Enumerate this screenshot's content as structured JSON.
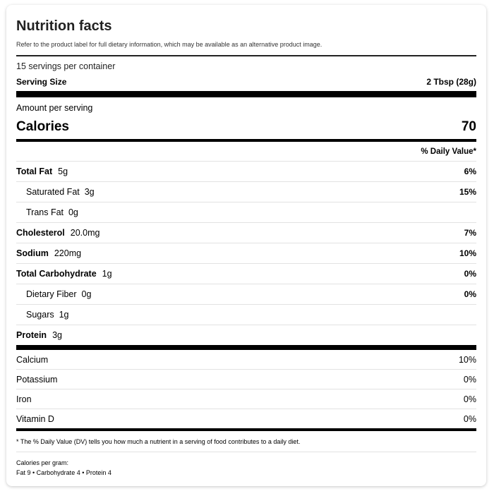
{
  "title": "Nutrition facts",
  "subtitle": "Refer to the product label for full dietary information, which may be available as an alternative product image.",
  "servings_per_container": "15 servings per container",
  "serving_size": {
    "label": "Serving Size",
    "value": "2 Tbsp (28g)"
  },
  "amount_per_serving": "Amount per serving",
  "calories": {
    "label": "Calories",
    "value": "70"
  },
  "daily_value_header": "% Daily Value*",
  "nutrients": [
    {
      "name": "Total Fat",
      "amount": "5g",
      "dv": "6%"
    },
    {
      "name": "Saturated Fat",
      "amount": "3g",
      "dv": "15%"
    },
    {
      "name": "Trans Fat",
      "amount": "0g",
      "dv": ""
    },
    {
      "name": "Cholesterol",
      "amount": "20.0mg",
      "dv": "7%"
    },
    {
      "name": "Sodium",
      "amount": "220mg",
      "dv": "10%"
    },
    {
      "name": "Total Carbohydrate",
      "amount": "1g",
      "dv": "0%"
    },
    {
      "name": "Dietary Fiber",
      "amount": "0g",
      "dv": "0%"
    },
    {
      "name": "Sugars",
      "amount": "1g",
      "dv": ""
    },
    {
      "name": "Protein",
      "amount": "3g",
      "dv": ""
    }
  ],
  "vitamins": [
    {
      "name": "Calcium",
      "dv": "10%"
    },
    {
      "name": "Potassium",
      "dv": "0%"
    },
    {
      "name": "Iron",
      "dv": "0%"
    },
    {
      "name": "Vitamin D",
      "dv": "0%"
    }
  ],
  "footnote": "* The % Daily Value (DV) tells you how much a nutrient in a serving of food contributes to a daily diet.",
  "calories_per_gram": {
    "label": "Calories per gram:",
    "values": "Fat 9 • Carbohydrate 4 • Protein 4"
  }
}
